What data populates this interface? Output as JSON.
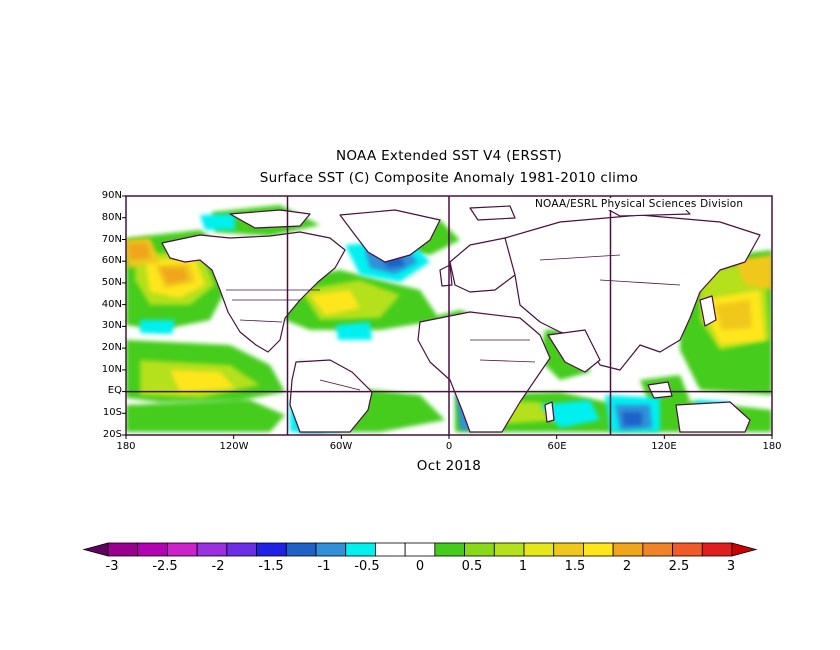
{
  "title_line1": "NOAA Extended SST V4 (ERSST)",
  "title_line2": "Surface SST (C) Composite Anomaly 1981-2010 climo",
  "credit": "NOAA/ESRL Physical Sciences Division",
  "period": "Oct 2018",
  "lat_labels": [
    "90N",
    "80N",
    "70N",
    "60N",
    "50N",
    "40N",
    "30N",
    "20N",
    "10N",
    "EQ",
    "10S",
    "20S"
  ],
  "lon_labels": [
    "180",
    "120W",
    "60W",
    "0",
    "60E",
    "120E",
    "180"
  ],
  "colorbar": {
    "labels": [
      "-3",
      "-2.5",
      "-2",
      "-1.5",
      "-1",
      "-0.5",
      "0",
      "0.5",
      "1",
      "1.5",
      "2",
      "2.5",
      "3"
    ],
    "colors": [
      "#600060",
      "#9a0090",
      "#b400b4",
      "#cc22cc",
      "#9a30e0",
      "#6b2ee6",
      "#2020e6",
      "#1e62c8",
      "#3090d8",
      "#00f0f0",
      "#ffffff",
      "#ffffff",
      "#44cc1c",
      "#88d81c",
      "#b4e01c",
      "#e6e61c",
      "#f0c81c",
      "#ffe61c",
      "#f0a51c",
      "#f08228",
      "#f05a28",
      "#e01e1e",
      "#cc0000"
    ]
  },
  "map_data": {
    "variable": "Surface SST (C) Composite Anomaly",
    "lat_range": [
      -20,
      90
    ],
    "lon_range": [
      -180,
      180
    ]
  }
}
